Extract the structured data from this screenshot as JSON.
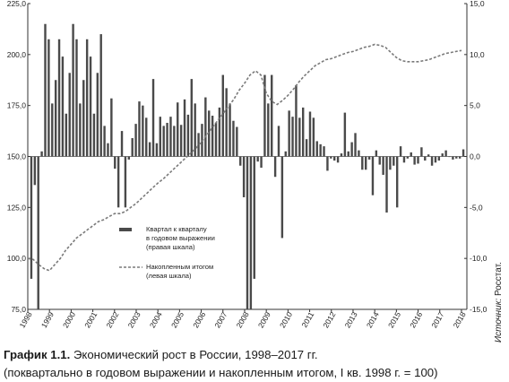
{
  "chart_data": {
    "type": "bar+line",
    "x_tick_labels": [
      "1998",
      "1999",
      "2000",
      "2001",
      "2002",
      "2003",
      "2004",
      "2005",
      "2006",
      "2007",
      "2008",
      "2009",
      "2010",
      "2011",
      "2012",
      "2013",
      "2014",
      "2015",
      "2016",
      "2017",
      "2018"
    ],
    "left_axis": {
      "ylim": [
        75,
        225
      ],
      "ticks": [
        "75,0",
        "100,0",
        "125,0",
        "150,0",
        "175,0",
        "200,0",
        "225,0"
      ]
    },
    "right_axis": {
      "ylim": [
        -15,
        15
      ],
      "ticks": [
        "-15,0",
        "-10,0",
        "-5,0",
        "0,0",
        "5,0",
        "10,0",
        "15,0"
      ]
    },
    "series": [
      {
        "name": "Квартал к кварталу в годовом выражении (правая шкала)",
        "type": "bar",
        "axis": "right",
        "color": "#4a4a4a",
        "values": [
          -12.0,
          -2.8,
          -15.0,
          0.5,
          13.0,
          11.5,
          5.2,
          7.5,
          11.5,
          9.8,
          4.2,
          8.2,
          13.0,
          11.5,
          5.2,
          7.5,
          11.5,
          9.8,
          4.2,
          8.2,
          12.0,
          3.0,
          1.3,
          5.7,
          -1.2,
          -5.0,
          2.5,
          -5.0,
          -0.3,
          1.8,
          3.2,
          5.4,
          5.0,
          3.8,
          1.4,
          7.6,
          1.3,
          3.9,
          3.0,
          3.3,
          3.9,
          3.0,
          5.3,
          3.1,
          5.6,
          4.1,
          7.6,
          5.2,
          2.3,
          3.2,
          5.8,
          4.5,
          4.0,
          3.3,
          4.8,
          8.0,
          6.7,
          5.2,
          3.5,
          2.9,
          -0.9,
          -4.0,
          -15.0,
          -15.0,
          -12.0,
          -0.5,
          -1.1,
          8.0,
          5.2,
          8.0,
          -2.0,
          3.0,
          -8.0,
          0.5,
          4.5,
          3.9,
          7.0,
          3.8,
          4.8,
          1.7,
          4.4,
          3.8,
          1.5,
          1.2,
          1.0,
          -1.4,
          -0.2,
          -0.4,
          -0.6,
          0.3,
          4.3,
          0.5,
          1.4,
          2.3,
          0.6,
          -1.3,
          -1.3,
          -0.3,
          -3.8,
          0.6,
          -0.8,
          -1.8,
          -5.5,
          -1.3,
          -0.9,
          -5.0,
          1.0,
          -0.6,
          -0.2,
          0.4,
          -0.8,
          -0.7,
          0.9,
          -0.4,
          0.2,
          -0.9,
          -0.6,
          -0.4,
          0.3,
          0.6,
          0.0,
          -0.3,
          -0.2,
          -0.2,
          0.7
        ]
      },
      {
        "name": "Накопленным итогом (левая шкала)",
        "type": "line",
        "axis": "left",
        "style": "dashed",
        "color": "#7a7a7a",
        "x": [
          1998.0,
          1998.25,
          1998.5,
          1998.75,
          1999.0,
          1999.25,
          1999.5,
          1999.75,
          2000.0,
          2000.25,
          2000.5,
          2000.75,
          2001.0,
          2001.25,
          2001.5,
          2001.75,
          2002.0,
          2002.25,
          2002.5,
          2002.75,
          2003.0,
          2003.25,
          2003.5,
          2003.75,
          2004.0,
          2004.25,
          2004.5,
          2004.75,
          2005.0,
          2005.25,
          2005.5,
          2005.75,
          2006.0,
          2006.25,
          2006.5,
          2006.75,
          2007.0,
          2007.25,
          2007.5,
          2007.75,
          2008.0,
          2008.25,
          2008.5,
          2008.75,
          2009.0,
          2009.25,
          2009.5,
          2009.75,
          2010.0,
          2010.25,
          2010.5,
          2010.75,
          2011.0,
          2011.25,
          2011.5,
          2011.75,
          2012.0,
          2012.25,
          2012.5,
          2012.75,
          2013.0,
          2013.25,
          2013.5,
          2013.75,
          2014.0,
          2014.25,
          2014.5,
          2014.75,
          2015.0,
          2015.25,
          2015.5,
          2015.75,
          2016.0,
          2016.25,
          2016.5,
          2016.75,
          2017.0,
          2017.25,
          2017.5,
          2017.75,
          2018.0
        ],
        "y": [
          100.0,
          99.5,
          97.0,
          95.0,
          94.0,
          97.0,
          100.0,
          104.0,
          107.0,
          110.0,
          112.0,
          114.0,
          116.0,
          118.0,
          119.0,
          120.5,
          122.0,
          122.0,
          123.0,
          125.0,
          127.0,
          129.5,
          132.0,
          134.5,
          137.0,
          139.0,
          141.5,
          144.0,
          146.5,
          149.0,
          151.5,
          154.0,
          157.0,
          160.5,
          164.0,
          167.5,
          171.0,
          174.5,
          178.0,
          182.5,
          186.0,
          190.0,
          192.0,
          190.0,
          181.0,
          177.0,
          175.5,
          177.5,
          180.0,
          183.0,
          186.5,
          189.5,
          192.0,
          194.5,
          196.0,
          197.5,
          198.0,
          199.0,
          200.0,
          201.0,
          201.5,
          202.5,
          203.5,
          204.0,
          205.0,
          204.5,
          203.5,
          201.0,
          198.5,
          197.0,
          196.5,
          196.5,
          196.5,
          197.0,
          197.5,
          198.5,
          199.5,
          200.5,
          201.0,
          201.5,
          202.0
        ]
      }
    ],
    "legend": {
      "placement": "center-left",
      "bar_lines": [
        "Квартал к кварталу",
        "в годовом выражении",
        "(правая шкала)"
      ],
      "line_lines": [
        "Накопленным итогом",
        "(левая шкала)"
      ]
    }
  },
  "caption": {
    "label": "График 1.1.",
    "text": "Экономический рост в России, 1998–2017 гг.",
    "text2": "(поквартально в годовом выражении и накопленным итогом, I кв. 1998 г. = 100)"
  },
  "source": {
    "label": "Источник:",
    "text": "Росстат."
  }
}
